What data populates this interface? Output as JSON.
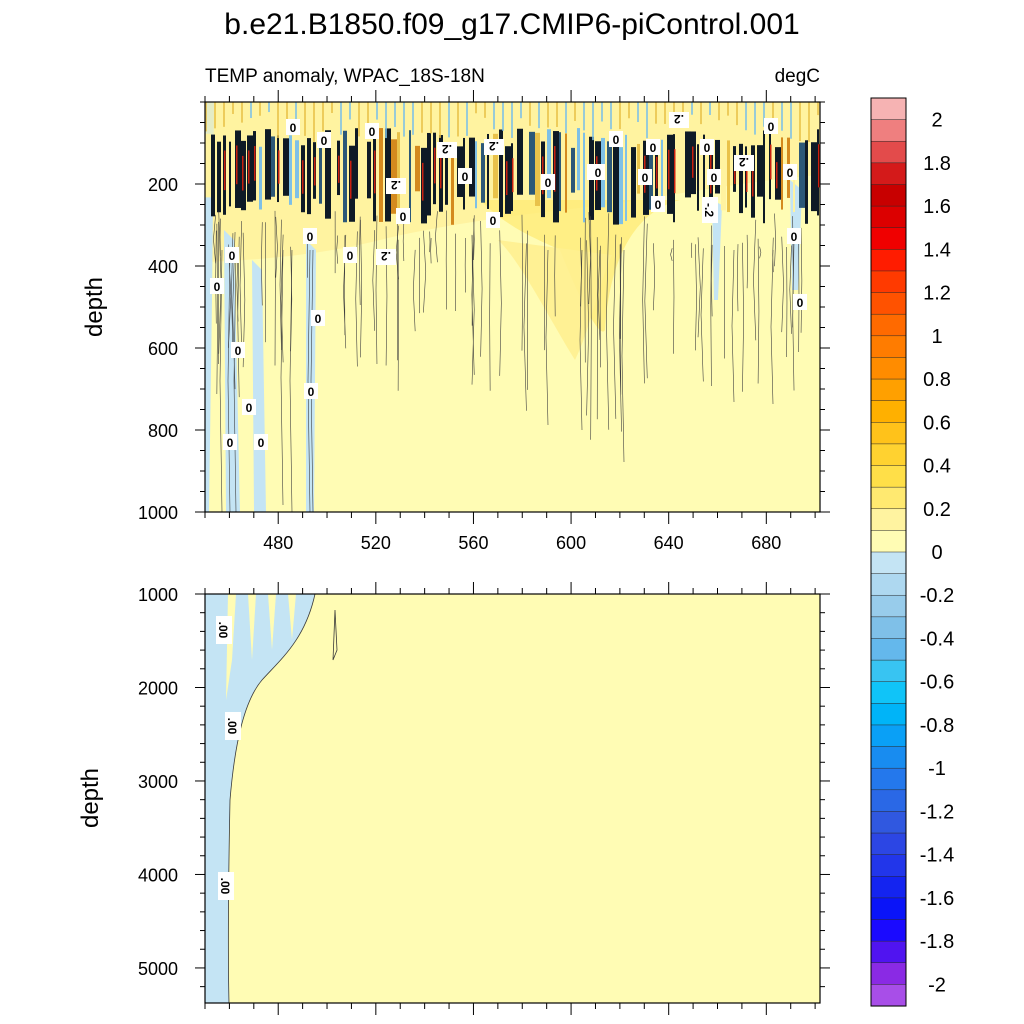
{
  "chart_data": {
    "type": "heatmap",
    "subtype": "filled-contour",
    "title": "b.e21.B1850.f09_g17.CMIP6-piControl.001",
    "left_label": "TEMP anomaly, WPAC_18S-18N",
    "right_label": "degC",
    "x": {
      "range": [
        450,
        702
      ],
      "ticks": [
        480,
        520,
        560,
        600,
        640,
        680
      ]
    },
    "panels": [
      {
        "name": "upper-ocean",
        "ylabel": "depth",
        "ylim": [
          0,
          1000
        ],
        "y_ticks": [
          200,
          400,
          600,
          800,
          1000
        ],
        "contour_labels": [
          "0",
          "0",
          "0",
          "0",
          "0",
          "0",
          "0",
          "0",
          "0",
          "0",
          "0",
          "0",
          "0",
          "0",
          "0",
          "0",
          "0",
          "0",
          "0",
          "0",
          "0",
          "0",
          "0",
          "0",
          "0",
          "0",
          "0",
          "0",
          "0",
          ".2",
          ".2",
          ".2",
          ".2",
          ".2",
          ".2",
          "-.2"
        ]
      },
      {
        "name": "deep-ocean",
        "ylabel": "depth",
        "ylim": [
          1000,
          5375
        ],
        "y_ticks": [
          1000,
          2000,
          3000,
          4000,
          5000
        ],
        "contour_labels": [
          ".00",
          ".00",
          ".00"
        ]
      }
    ],
    "colorbar": {
      "levels": [
        -2.1,
        -2.0,
        -1.9,
        -1.8,
        -1.7,
        -1.6,
        -1.5,
        -1.4,
        -1.3,
        -1.2,
        -1.1,
        -1.0,
        -0.9,
        -0.8,
        -0.7,
        -0.6,
        -0.5,
        -0.4,
        -0.3,
        -0.2,
        -0.1,
        0.0,
        0.1,
        0.2,
        0.3,
        0.4,
        0.5,
        0.6,
        0.7,
        0.8,
        0.9,
        1.0,
        1.1,
        1.2,
        1.3,
        1.4,
        1.5,
        1.6,
        1.7,
        1.8,
        1.9,
        2.0,
        2.1
      ],
      "labels": [
        "2",
        "1.8",
        "1.6",
        "1.4",
        "1.2",
        "1",
        "0.8",
        "0.6",
        "0.4",
        "0.2",
        "0",
        "-0.2",
        "-0.4",
        "-0.6",
        "-0.8",
        "-1",
        "-1.2",
        "-1.4",
        "-1.6",
        "-1.8",
        "-2"
      ],
      "colors_top_to_bottom": [
        "#f6b3b3",
        "#ef7f7f",
        "#e34b4b",
        "#d41a1a",
        "#c80000",
        "#dc0000",
        "#f00000",
        "#ff1c00",
        "#ff3a00",
        "#ff5200",
        "#ff6a00",
        "#ff7c00",
        "#ff8c00",
        "#ffa000",
        "#ffb000",
        "#ffc21a",
        "#ffd230",
        "#ffdf48",
        "#ffe970",
        "#fff3a0",
        "#fffcb4",
        "#c4e4f4",
        "#aed8f0",
        "#98cceb",
        "#7fc0e8",
        "#64b8ec",
        "#38c4f2",
        "#10c4f8",
        "#00b4f8",
        "#0aa0f6",
        "#188cf0",
        "#2478ec",
        "#2a68e6",
        "#3058e0",
        "#2c46e4",
        "#2236ea",
        "#1424f0",
        "#0a14f8",
        "#1a0aff",
        "#5014f0",
        "#8a2ae4",
        "#a84ee8"
      ]
    }
  }
}
